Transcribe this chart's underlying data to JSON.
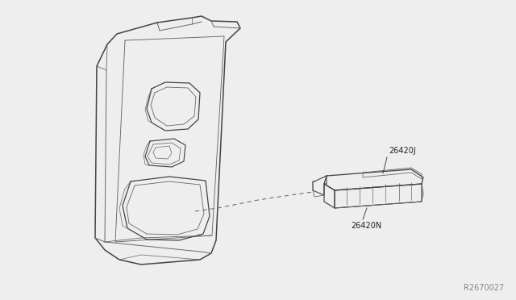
{
  "bg_color": "#eeeeee",
  "line_color": "#666666",
  "dark_line": "#444444",
  "label_26420J": "26420J",
  "label_26420N": "26420N",
  "ref_code": "R2670027",
  "font_size_labels": 7,
  "font_size_ref": 7
}
